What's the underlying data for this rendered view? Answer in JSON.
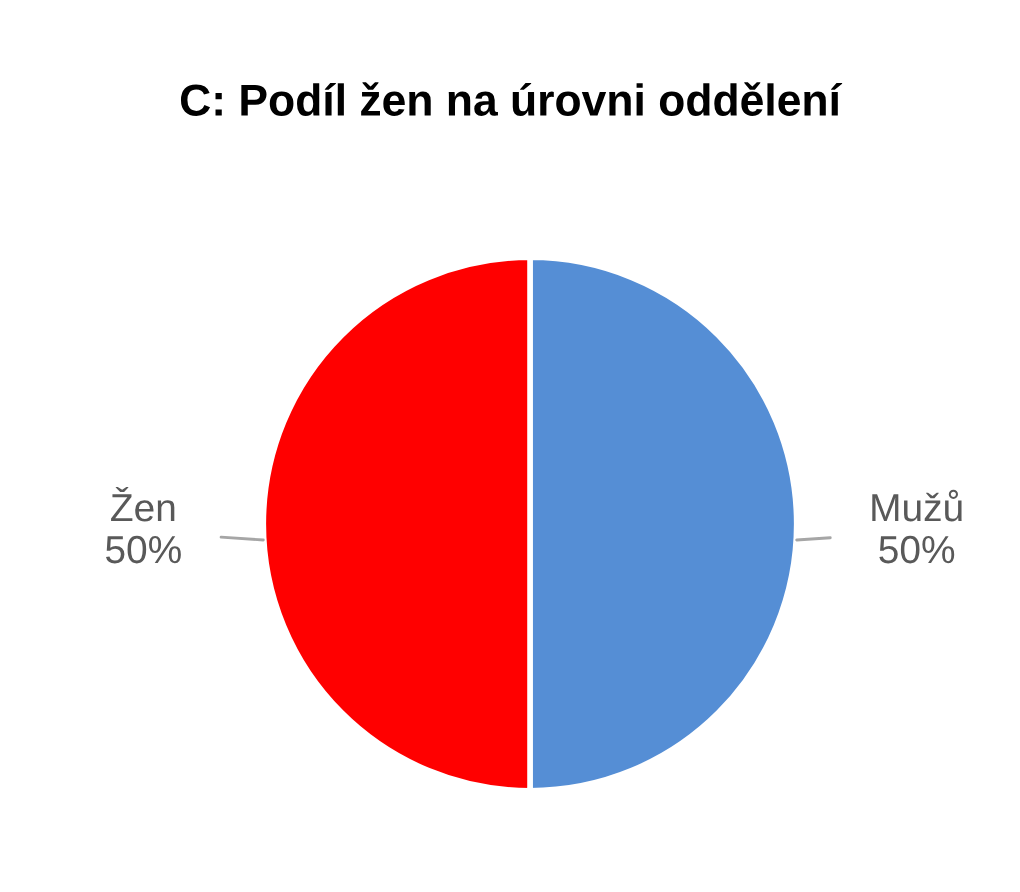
{
  "chart_data": {
    "type": "pie",
    "title": "C: Podíl žen na úrovni oddělení",
    "categories": [
      "Mužů",
      "Žen"
    ],
    "values": [
      50,
      50
    ],
    "value_labels": [
      "50%",
      "50%"
    ],
    "colors": [
      "#558ed5",
      "#ff0000"
    ],
    "legend": false
  }
}
